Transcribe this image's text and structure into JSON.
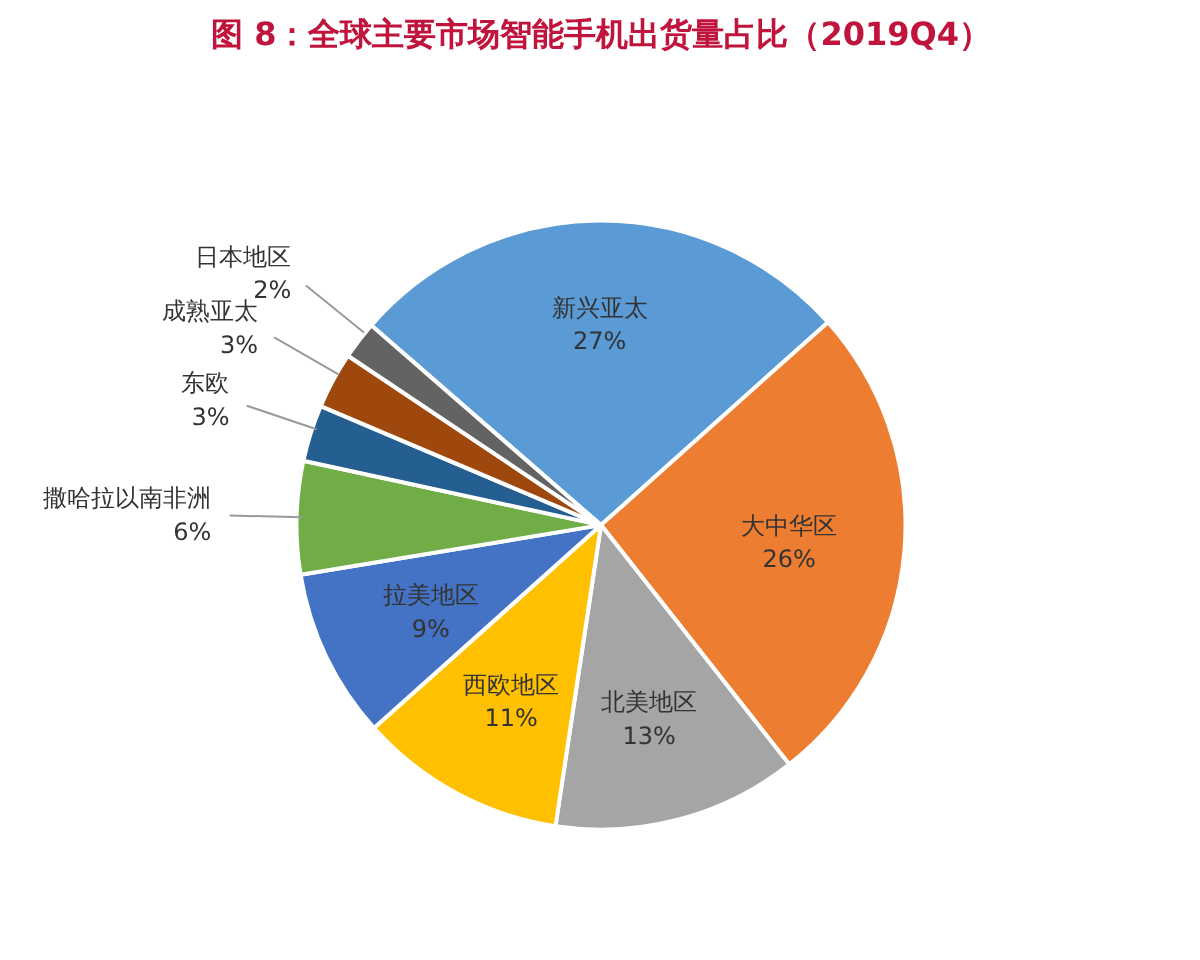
{
  "chart_data": {
    "type": "pie",
    "title": "图 8：全球主要市场智能手机出货量占比（2019Q4）",
    "categories": [
      "新兴亚太",
      "大中华区",
      "北美地区",
      "西欧地区",
      "拉美地区",
      "撒哈拉以南非洲",
      "东欧",
      "成熟亚太",
      "日本地区"
    ],
    "values": [
      27,
      26,
      13,
      11,
      9,
      6,
      3,
      3,
      2
    ],
    "value_labels": [
      "27%",
      "26%",
      "13%",
      "11%",
      "9%",
      "6%",
      "3%",
      "3%",
      "2%"
    ],
    "colors": [
      "#5b9bd5",
      "#ed7d31",
      "#a5a5a5",
      "#ffc000",
      "#4472c4",
      "#70ad47",
      "#255e91",
      "#9e480e",
      "#636363"
    ]
  }
}
